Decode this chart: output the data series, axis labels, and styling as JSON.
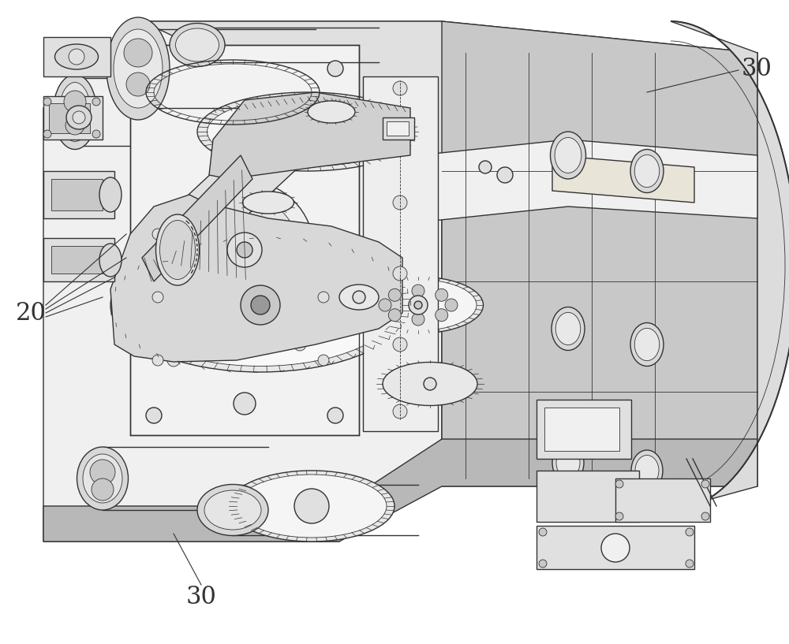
{
  "background_color": "#ffffff",
  "line_color": "#333333",
  "label_20": "20",
  "label_30_top": "30",
  "label_30_bottom": "30",
  "figsize": [
    10.0,
    8.17
  ],
  "dpi": 100,
  "lw_main": 1.0,
  "lw_thin": 0.6,
  "lw_thick": 1.4,
  "gear_color": "#e8e8e8",
  "body_light": "#f0f0f0",
  "body_mid": "#e0e0e0",
  "body_dark": "#c8c8c8",
  "shaft_color": "#d8d8d8",
  "belt_color": "#d0d0d0"
}
